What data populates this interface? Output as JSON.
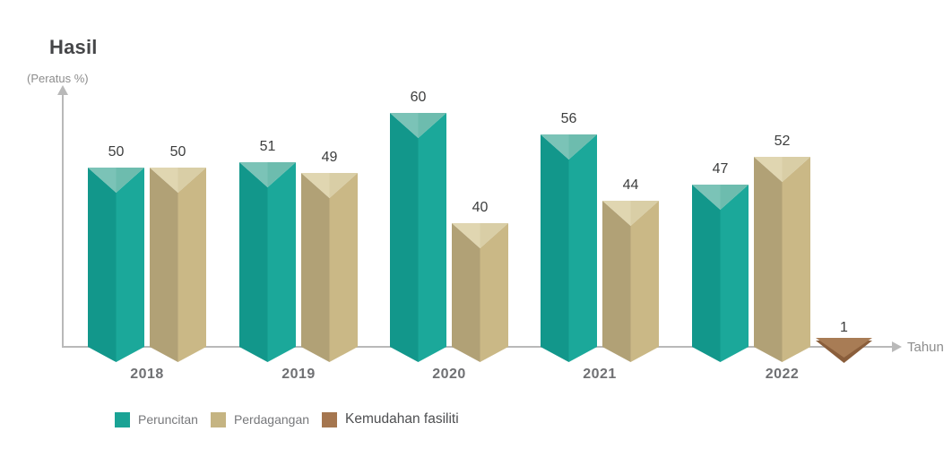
{
  "chart_data": {
    "type": "bar",
    "title": "Hasil",
    "ylabel": "(Peratus %)",
    "xlabel": "Tahun",
    "categories": [
      "2018",
      "2019",
      "2020",
      "2021",
      "2022"
    ],
    "series": [
      {
        "name": "Peruncitan",
        "values": [
          50,
          51,
          60,
          56,
          47
        ],
        "color": "#1aa395",
        "shades": {
          "left": "#12978b",
          "right": "#1ba89a",
          "top_left": "#7bc3b7",
          "top_right": "#6dbcae"
        }
      },
      {
        "name": "Perdagangan",
        "values": [
          50,
          49,
          40,
          44,
          52
        ],
        "color": "#c5b482",
        "shades": {
          "left": "#b1a176",
          "right": "#cab886",
          "top_left": "#e0d6b1",
          "top_right": "#d9cea6"
        }
      },
      {
        "name": "Kemudahan fasiliti",
        "values": [
          null,
          null,
          null,
          null,
          1
        ],
        "color": "#a5764f",
        "shades": {
          "top": "#a87c55",
          "rim": "#8a5e3b"
        }
      }
    ],
    "legend_position": "bottom",
    "grid": false,
    "axis_color": "#b9b9b9",
    "style": "3d triangular-prism bars; value axis unlabeled and not to scale from zero; bars dip below baseline in a V point"
  }
}
